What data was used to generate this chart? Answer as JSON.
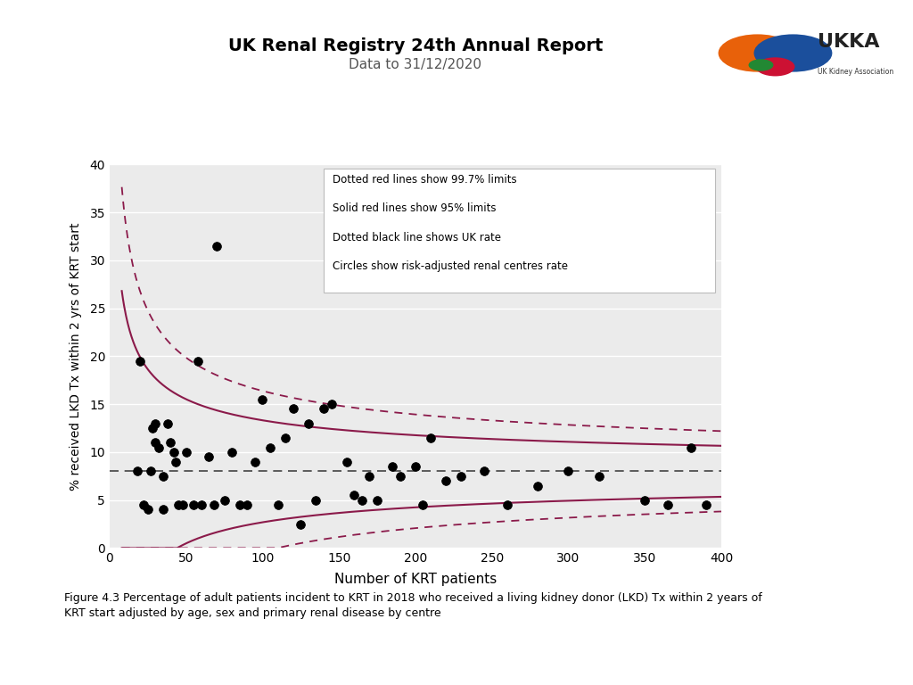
{
  "title": "UK Renal Registry 24th Annual Report",
  "subtitle": "Data to 31/12/2020",
  "xlabel": "Number of KRT patients",
  "ylabel": "% received LKD Tx within 2 yrs of KRT start",
  "xlim": [
    0,
    400
  ],
  "ylim": [
    0,
    40
  ],
  "xticks": [
    0,
    50,
    100,
    150,
    200,
    250,
    300,
    350,
    400
  ],
  "yticks": [
    0,
    5,
    10,
    15,
    20,
    25,
    30,
    35,
    40
  ],
  "uk_rate": 8.0,
  "bg_color": "#ebebeb",
  "red_color": "#8b1a4a",
  "scatter_x": [
    18,
    20,
    22,
    25,
    27,
    28,
    30,
    30,
    32,
    35,
    35,
    38,
    40,
    42,
    43,
    45,
    48,
    50,
    55,
    58,
    60,
    65,
    68,
    70,
    75,
    80,
    85,
    90,
    95,
    100,
    105,
    110,
    115,
    120,
    125,
    130,
    135,
    140,
    145,
    155,
    160,
    165,
    170,
    175,
    185,
    190,
    200,
    205,
    210,
    220,
    230,
    245,
    260,
    280,
    300,
    320,
    350,
    365,
    380,
    390
  ],
  "scatter_y": [
    8,
    19.5,
    4.5,
    4,
    8,
    12.5,
    13,
    11,
    10.5,
    7.5,
    4,
    13,
    11,
    10,
    9,
    4.5,
    4.5,
    10,
    4.5,
    19.5,
    4.5,
    9.5,
    4.5,
    31.5,
    5,
    10,
    4.5,
    4.5,
    9,
    15.5,
    10.5,
    4.5,
    11.5,
    14.5,
    2.5,
    13,
    5,
    14.5,
    15,
    9,
    5.5,
    5,
    7.5,
    5,
    8.5,
    7.5,
    8.5,
    4.5,
    11.5,
    7,
    7.5,
    8,
    4.5,
    6.5,
    8,
    7.5,
    5,
    4.5,
    10.5,
    4.5
  ],
  "legend_texts": [
    "Dotted red lines show 99.7% limits",
    "Solid red lines show 95% limits",
    "Dotted black line shows UK rate",
    "Circles show risk-adjusted renal centres rate"
  ],
  "figure_caption": "Figure 4.3 Percentage of adult patients incident to KRT in 2018 who received a living kidney donor (LKD) Tx within 2 years of\nKRT start adjusted by age, sex and primary renal disease by centre"
}
